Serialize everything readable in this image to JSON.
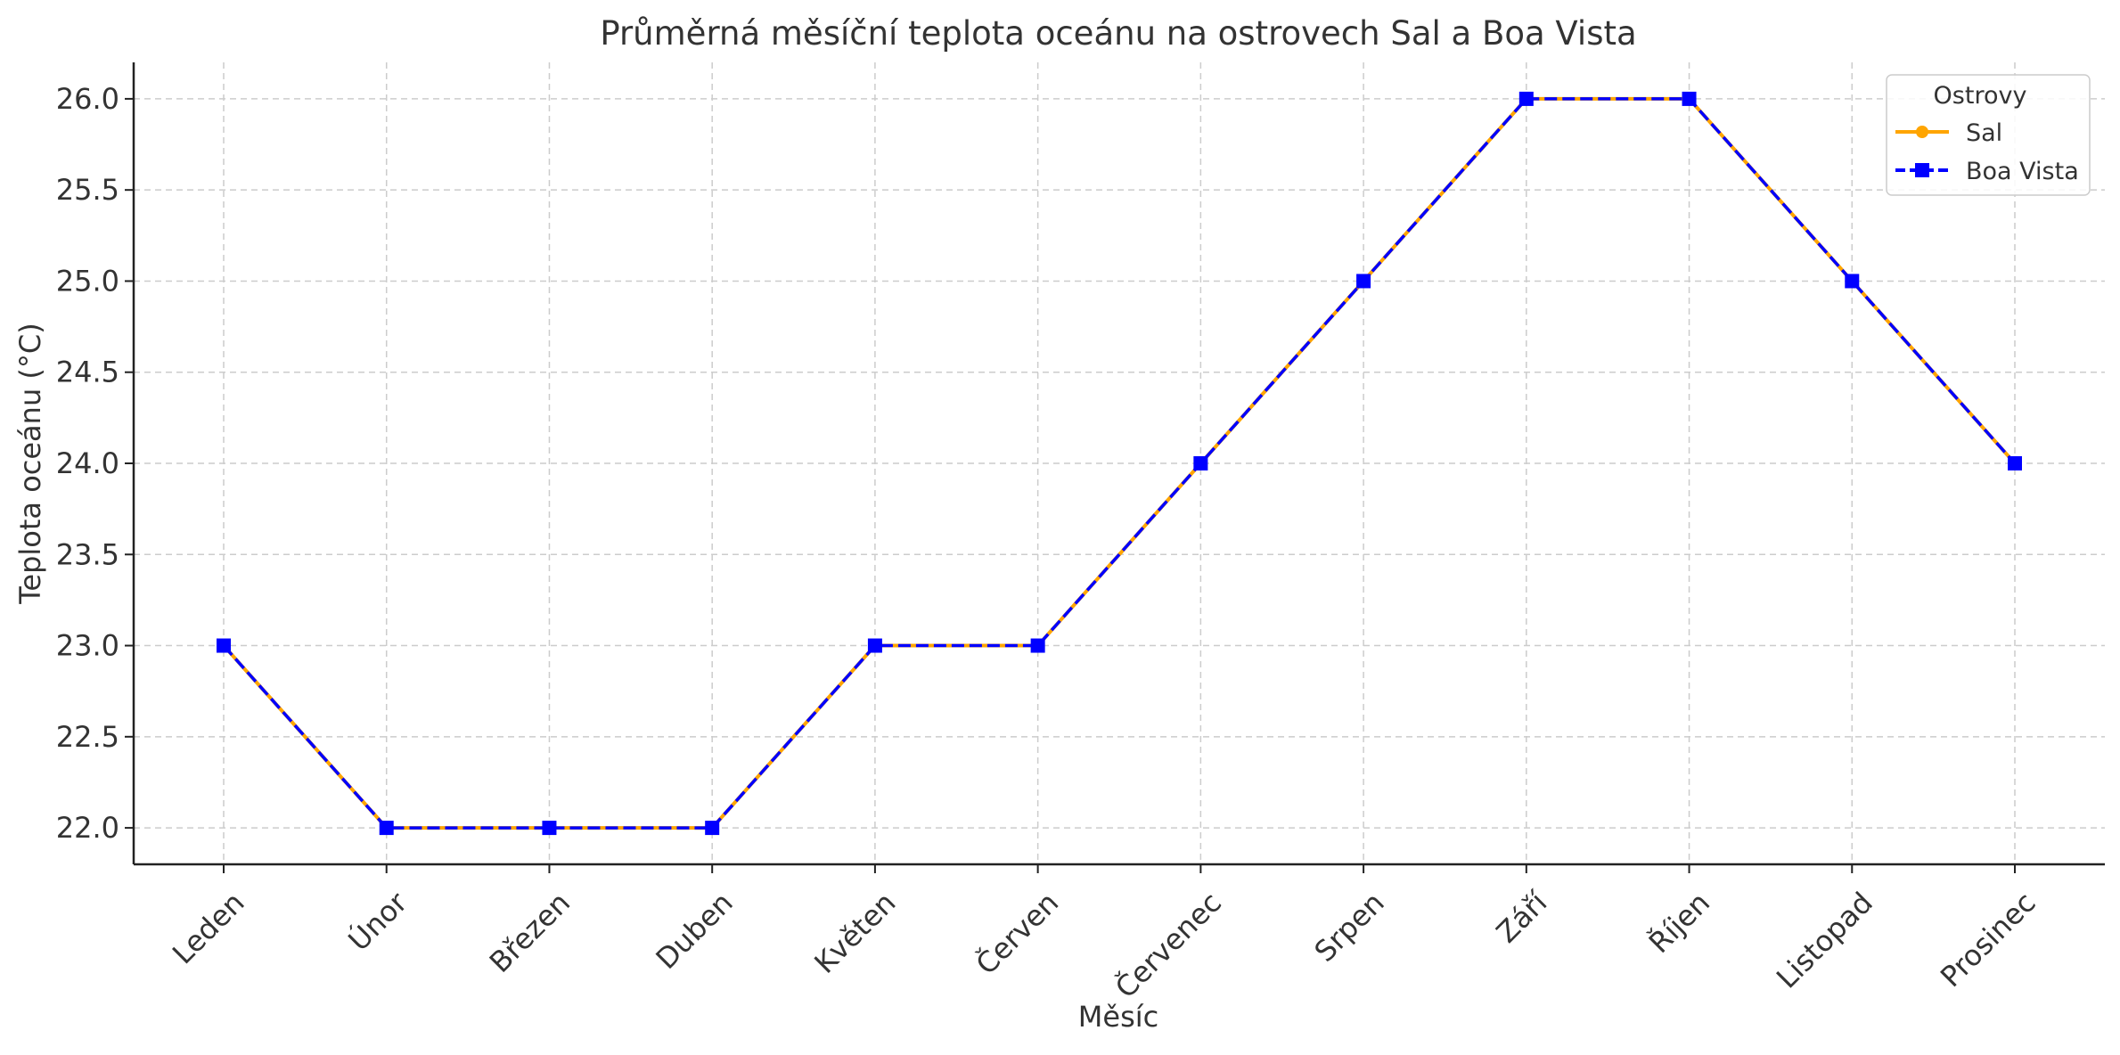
{
  "colors": {
    "sal": "#ffa500",
    "boa_vista": "#0000ff",
    "grid": "#cccccc",
    "axis": "#222222",
    "text": "#333333"
  },
  "chart_data": {
    "type": "line",
    "title": "Průměrná měsíční teplota oceánu na ostrovech Sal a Boa Vista",
    "xlabel": "Měsíc",
    "ylabel": "Teplota oceánu (°C)",
    "categories": [
      "Leden",
      "Únor",
      "Březen",
      "Duben",
      "Květen",
      "Červen",
      "Červenec",
      "Srpen",
      "Září",
      "Říjen",
      "Listopad",
      "Prosinec"
    ],
    "ylim": [
      21.8,
      26.2
    ],
    "yticks": [
      "22.0",
      "22.5",
      "23.0",
      "23.5",
      "24.0",
      "24.5",
      "25.0",
      "25.5",
      "26.0"
    ],
    "grid": true,
    "legend": {
      "title": "Ostrovy",
      "placement": "top-right"
    },
    "series": [
      {
        "name": "Sal",
        "values": [
          23,
          22,
          22,
          22,
          23,
          23,
          24,
          25,
          26,
          26,
          25,
          24
        ],
        "color": "#ffa500",
        "line_style": "solid",
        "marker": "circle"
      },
      {
        "name": "Boa Vista",
        "values": [
          23,
          22,
          22,
          22,
          23,
          23,
          24,
          25,
          26,
          26,
          25,
          24
        ],
        "color": "#0000ff",
        "line_style": "dashed",
        "marker": "square"
      }
    ]
  }
}
